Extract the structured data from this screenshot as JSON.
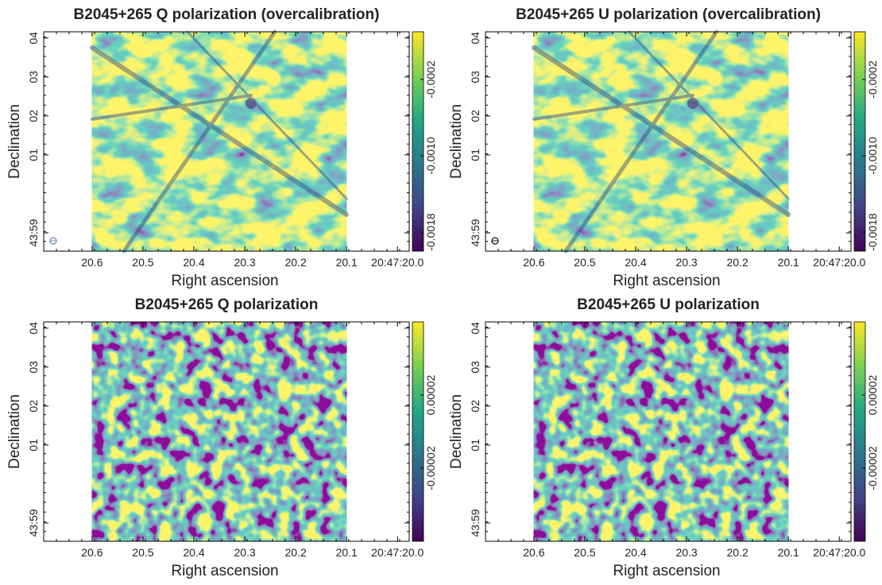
{
  "chart_data": [
    {
      "type": "image",
      "title": "B2045+265 Q polarization (overcalibration)",
      "xlabel": "Right ascension",
      "ylabel": "Declination",
      "xlim": [
        20.695,
        19.977
      ],
      "xticks": [
        20.6,
        20.5,
        20.4,
        20.3,
        20.2,
        20.1,
        {
          "value": 20.0,
          "label": "20:47:20.0"
        }
      ],
      "ylim": [
        -1.47,
        4.16
      ],
      "yticks": [
        {
          "value": 4,
          "label": "04"
        },
        {
          "value": 3,
          "label": "03"
        },
        {
          "value": 2,
          "label": "02"
        },
        {
          "value": 1,
          "label": "01"
        },
        {
          "value": -1,
          "label": "43:59"
        }
      ],
      "image_x": [
        20.6,
        20.1
      ],
      "clim": [
        -0.002,
        0.0003
      ],
      "cticks": [
        -0.0018,
        {
          "value": -0.001,
          "label": "-0.0010"
        },
        -0.0002
      ]
    },
    {
      "type": "image",
      "title": "B2045+265 U polarization (overcalibration)",
      "xlabel": "Right ascension",
      "ylabel": "Declination",
      "xlim": [
        20.695,
        19.977
      ],
      "xticks": [
        20.6,
        20.5,
        20.4,
        20.3,
        20.2,
        20.1,
        {
          "value": 20.0,
          "label": "20:47:20.0"
        }
      ],
      "ylim": [
        -1.47,
        4.16
      ],
      "yticks": [
        {
          "value": 4,
          "label": "04"
        },
        {
          "value": 3,
          "label": "03"
        },
        {
          "value": 2,
          "label": "02"
        },
        {
          "value": 1,
          "label": "01"
        },
        {
          "value": -1,
          "label": "43:59"
        }
      ],
      "image_x": [
        20.6,
        20.1
      ],
      "clim": [
        -0.002,
        0.0003
      ],
      "cticks": [
        -0.0018,
        {
          "value": -0.001,
          "label": "-0.0010"
        },
        -0.0002
      ]
    },
    {
      "type": "image",
      "title": "B2045+265 Q polarization",
      "xlabel": "Right ascension",
      "ylabel": "Declination",
      "xlim": [
        20.695,
        19.977
      ],
      "xticks": [
        20.6,
        20.5,
        20.4,
        20.3,
        20.2,
        20.1,
        {
          "value": 20.0,
          "label": "20:47:20.0"
        }
      ],
      "ylim": [
        -1.47,
        4.16
      ],
      "yticks": [
        {
          "value": 4,
          "label": "04"
        },
        {
          "value": 3,
          "label": "03"
        },
        {
          "value": 2,
          "label": "02"
        },
        {
          "value": 1,
          "label": "01"
        },
        {
          "value": -1,
          "label": "43:59"
        }
      ],
      "image_x": [
        20.6,
        20.1
      ],
      "clim": [
        -6e-05,
        6e-05
      ],
      "cticks": [
        -2e-05,
        2e-05
      ]
    },
    {
      "type": "image",
      "title": "B2045+265 U polarization",
      "xlabel": "Right ascension",
      "ylabel": "Declination",
      "xlim": [
        20.695,
        19.977
      ],
      "xticks": [
        20.6,
        20.5,
        20.4,
        20.3,
        20.2,
        20.1,
        {
          "value": 20.0,
          "label": "20:47:20.0"
        }
      ],
      "ylim": [
        -1.47,
        4.16
      ],
      "yticks": [
        {
          "value": 4,
          "label": "04"
        },
        {
          "value": 3,
          "label": "03"
        },
        {
          "value": 2,
          "label": "02"
        },
        {
          "value": 1,
          "label": "01"
        },
        {
          "value": -1,
          "label": "43:59"
        }
      ],
      "image_x": [
        20.6,
        20.1
      ],
      "clim": [
        -6e-05,
        6e-05
      ],
      "cticks": [
        -2e-05,
        2e-05
      ]
    }
  ]
}
